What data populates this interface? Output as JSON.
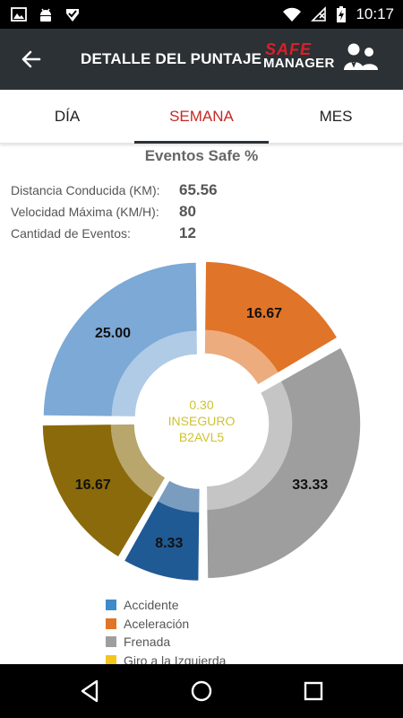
{
  "status_bar": {
    "time": "10:17",
    "icons": [
      "image-icon",
      "android-icon",
      "checkmark-icon",
      "wifi-icon",
      "no-signal-icon",
      "battery-charging-icon"
    ]
  },
  "app_bar": {
    "back_icon": "arrow-back-icon",
    "title": "DETALLE DEL PUNTAJE",
    "logo_line1": "SAFE",
    "logo_line2": "MANAGER"
  },
  "tabs": [
    {
      "label": "DÍA",
      "selected": false
    },
    {
      "label": "SEMANA",
      "selected": true
    },
    {
      "label": "MES",
      "selected": false
    }
  ],
  "section": {
    "title": "Eventos Safe %"
  },
  "stats": [
    {
      "label": "Distancia Conducida (KM):",
      "value": "65.56"
    },
    {
      "label": "Velocidad Máxima (KM/H):",
      "value": "80"
    },
    {
      "label": "Cantidad de Eventos:",
      "value": "12"
    }
  ],
  "chart_data": {
    "type": "pie",
    "style": "donut",
    "center_value": "0.30",
    "center_label": "INSEGURO",
    "center_id": "B2AVL5",
    "slices": [
      {
        "name": "Aceleración",
        "value": 16.67,
        "label": "16.67",
        "color": "#e07428"
      },
      {
        "name": "Frenada",
        "value": 33.33,
        "label": "33.33",
        "color": "#9e9e9e"
      },
      {
        "name": "",
        "value": 8.33,
        "label": "8.33",
        "color": "#1f5a94"
      },
      {
        "name": "",
        "value": 16.67,
        "label": "16.67",
        "color": "#8a6a0a"
      },
      {
        "name": "Accidente",
        "value": 25.0,
        "label": "25.00",
        "color": "#7ca9d6"
      }
    ],
    "legend": [
      {
        "name": "Accidente",
        "color": "#3f8ac9"
      },
      {
        "name": "Aceleración",
        "color": "#e07428"
      },
      {
        "name": "Frenada",
        "color": "#9e9e9e"
      },
      {
        "name": "Giro a la Izquierda",
        "color": "#f2c61f"
      }
    ],
    "legend_position": "bottom-left"
  },
  "nav_bar": {
    "icons": [
      "back-triangle-icon",
      "home-circle-icon",
      "recents-square-icon"
    ]
  }
}
